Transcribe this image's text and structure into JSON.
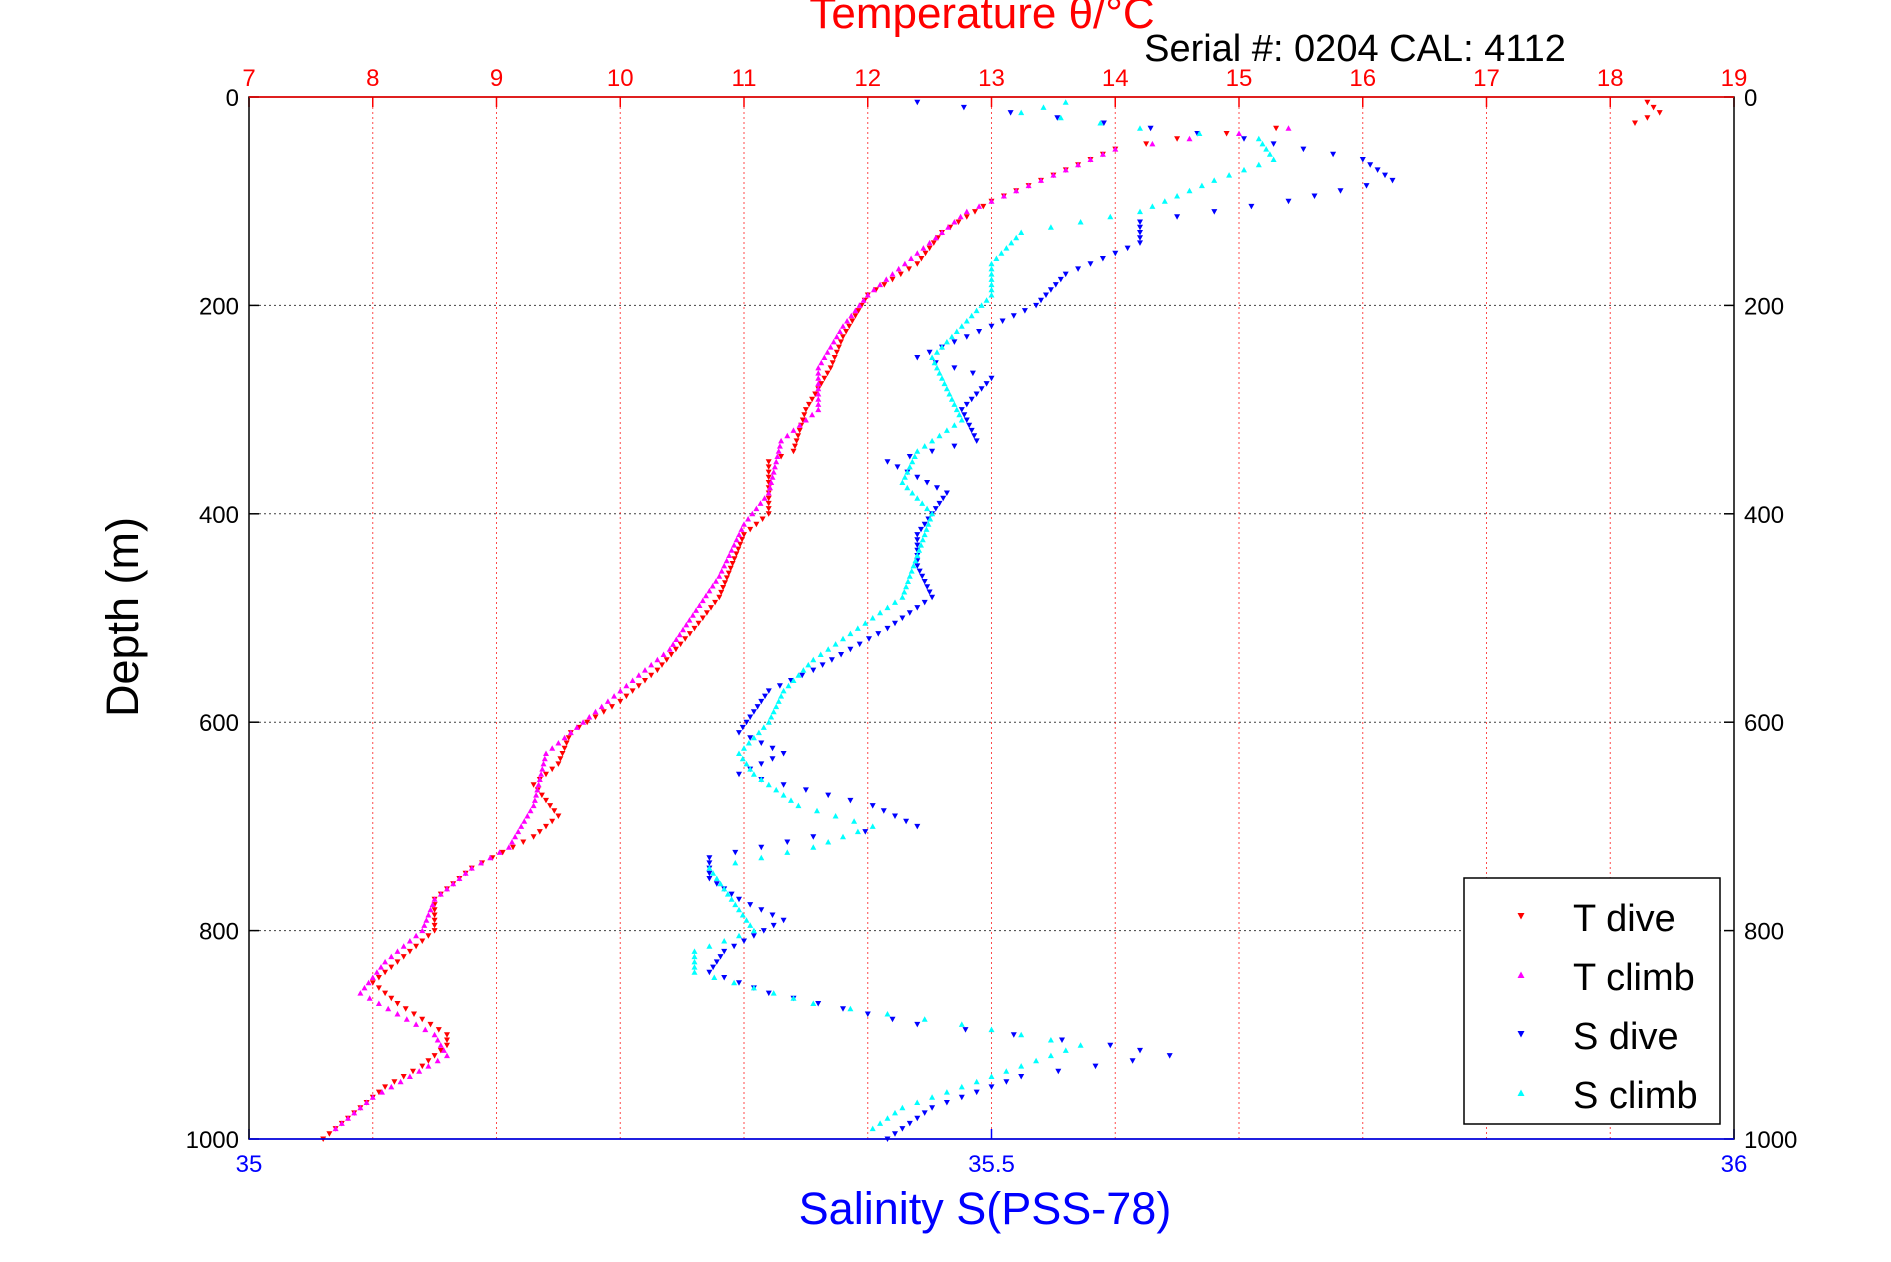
{
  "chart_data": {
    "type": "scatter",
    "title": "Temperature θ/°C",
    "serial_label": "Serial #: 0204  CAL: 4112",
    "ylabel": "Depth (m)",
    "xlabel_bottom": "Salinity S(PSS-78)",
    "y_axis": {
      "range": [
        0,
        1000
      ],
      "inverted": true,
      "ticks": [
        "0",
        "200",
        "400",
        "600",
        "800",
        "1000"
      ]
    },
    "x_top": {
      "quantity": "temperature",
      "range": [
        7,
        19
      ],
      "ticks": [
        "7",
        "8",
        "9",
        "10",
        "11",
        "12",
        "13",
        "14",
        "15",
        "16",
        "17",
        "18",
        "19"
      ]
    },
    "x_bottom": {
      "quantity": "salinity",
      "range": [
        35,
        36
      ],
      "ticks": [
        "35",
        "35.5",
        "36"
      ]
    },
    "grid": true,
    "legend": {
      "position": "bottom-right",
      "entries": [
        "T dive",
        "T climb",
        "S dive",
        "S climb"
      ]
    },
    "colors": {
      "title": "#ff0000",
      "temperature_axis": "#ff0000",
      "salinity_axis": "#0000ff",
      "frame": "#000000",
      "grid": "#000000"
    },
    "series": [
      {
        "name": "T dive",
        "axis": "temperature",
        "color": "#ff0000",
        "marker": "triangle-down",
        "points": [
          [
            18.3,
            5
          ],
          [
            18.4,
            15
          ],
          [
            18.2,
            25
          ],
          [
            15.3,
            30
          ],
          [
            14.5,
            40
          ],
          [
            14,
            50
          ],
          [
            13.8,
            60
          ],
          [
            13.4,
            80
          ],
          [
            13,
            100
          ],
          [
            12.6,
            130
          ],
          [
            12.4,
            160
          ],
          [
            12,
            190
          ],
          [
            11.8,
            230
          ],
          [
            11.7,
            260
          ],
          [
            11.5,
            300
          ],
          [
            11.4,
            340
          ],
          [
            11.2,
            350
          ],
          [
            11.2,
            400
          ],
          [
            11,
            420
          ],
          [
            10.8,
            480
          ],
          [
            10.6,
            510
          ],
          [
            10.3,
            550
          ],
          [
            10,
            580
          ],
          [
            9.6,
            610
          ],
          [
            9.5,
            640
          ],
          [
            9.3,
            660
          ],
          [
            9.5,
            690
          ],
          [
            9.3,
            710
          ],
          [
            8.8,
            740
          ],
          [
            8.5,
            770
          ],
          [
            8.5,
            800
          ],
          [
            8.3,
            820
          ],
          [
            8,
            850
          ],
          [
            8.2,
            870
          ],
          [
            8.6,
            900
          ],
          [
            8.6,
            910
          ],
          [
            8.4,
            930
          ],
          [
            8.1,
            950
          ],
          [
            7.9,
            970
          ],
          [
            7.6,
            1000
          ]
        ]
      },
      {
        "name": "T climb",
        "axis": "temperature",
        "color": "#ff00ff",
        "marker": "triangle-up",
        "points": [
          [
            15.4,
            30
          ],
          [
            14.6,
            40
          ],
          [
            14,
            50
          ],
          [
            13.6,
            70
          ],
          [
            13.2,
            90
          ],
          [
            12.8,
            110
          ],
          [
            12.4,
            150
          ],
          [
            12,
            190
          ],
          [
            11.8,
            220
          ],
          [
            11.6,
            260
          ],
          [
            11.6,
            300
          ],
          [
            11.3,
            330
          ],
          [
            11.2,
            380
          ],
          [
            11,
            410
          ],
          [
            10.8,
            460
          ],
          [
            10.4,
            530
          ],
          [
            10,
            570
          ],
          [
            9.7,
            600
          ],
          [
            9.4,
            630
          ],
          [
            9.3,
            680
          ],
          [
            9.1,
            720
          ],
          [
            8.8,
            740
          ],
          [
            8.5,
            770
          ],
          [
            8.4,
            800
          ],
          [
            8.1,
            830
          ],
          [
            7.9,
            860
          ],
          [
            8.2,
            880
          ],
          [
            8.5,
            900
          ],
          [
            8.6,
            920
          ],
          [
            8.3,
            940
          ],
          [
            8,
            960
          ],
          [
            7.7,
            990
          ]
        ]
      },
      {
        "name": "S dive",
        "axis": "salinity",
        "color": "#0000ff",
        "marker": "triangle-down",
        "points": [
          [
            35.45,
            5
          ],
          [
            35.67,
            40
          ],
          [
            35.75,
            60
          ],
          [
            35.77,
            80
          ],
          [
            35.7,
            100
          ],
          [
            35.6,
            120
          ],
          [
            35.6,
            140
          ],
          [
            35.55,
            170
          ],
          [
            35.53,
            200
          ],
          [
            35.5,
            220
          ],
          [
            35.45,
            250
          ],
          [
            35.5,
            270
          ],
          [
            35.48,
            300
          ],
          [
            35.49,
            330
          ],
          [
            35.43,
            350
          ],
          [
            35.47,
            380
          ],
          [
            35.45,
            420
          ],
          [
            35.45,
            450
          ],
          [
            35.46,
            480
          ],
          [
            35.43,
            510
          ],
          [
            35.38,
            550
          ],
          [
            35.35,
            570
          ],
          [
            35.34,
            590
          ],
          [
            35.33,
            610
          ],
          [
            35.36,
            630
          ],
          [
            35.33,
            650
          ],
          [
            35.42,
            680
          ],
          [
            35.45,
            700
          ],
          [
            35.38,
            710
          ],
          [
            35.31,
            730
          ],
          [
            35.31,
            750
          ],
          [
            35.33,
            770
          ],
          [
            35.36,
            790
          ],
          [
            35.32,
            820
          ],
          [
            35.31,
            840
          ],
          [
            35.35,
            860
          ],
          [
            35.45,
            890
          ],
          [
            35.58,
            910
          ],
          [
            35.62,
            920
          ],
          [
            35.52,
            940
          ],
          [
            35.46,
            970
          ],
          [
            35.43,
            1000
          ]
        ]
      },
      {
        "name": "S climb",
        "axis": "salinity",
        "color": "#00ffff",
        "marker": "triangle-up",
        "points": [
          [
            35.55,
            5
          ],
          [
            35.52,
            15
          ],
          [
            35.6,
            30
          ],
          [
            35.68,
            40
          ],
          [
            35.69,
            60
          ],
          [
            35.65,
            80
          ],
          [
            35.6,
            110
          ],
          [
            35.52,
            130
          ],
          [
            35.5,
            160
          ],
          [
            35.5,
            190
          ],
          [
            35.48,
            220
          ],
          [
            35.46,
            250
          ],
          [
            35.47,
            280
          ],
          [
            35.48,
            310
          ],
          [
            35.45,
            340
          ],
          [
            35.44,
            370
          ],
          [
            35.46,
            400
          ],
          [
            35.45,
            440
          ],
          [
            35.44,
            480
          ],
          [
            35.41,
            510
          ],
          [
            35.38,
            540
          ],
          [
            35.36,
            570
          ],
          [
            35.35,
            600
          ],
          [
            35.33,
            630
          ],
          [
            35.34,
            650
          ],
          [
            35.37,
            680
          ],
          [
            35.42,
            700
          ],
          [
            35.38,
            720
          ],
          [
            35.31,
            740
          ],
          [
            35.32,
            760
          ],
          [
            35.33,
            780
          ],
          [
            35.34,
            800
          ],
          [
            35.3,
            820
          ],
          [
            35.3,
            840
          ],
          [
            35.38,
            870
          ],
          [
            35.48,
            890
          ],
          [
            35.56,
            910
          ],
          [
            35.5,
            940
          ],
          [
            35.44,
            970
          ],
          [
            35.42,
            990
          ]
        ]
      }
    ]
  }
}
